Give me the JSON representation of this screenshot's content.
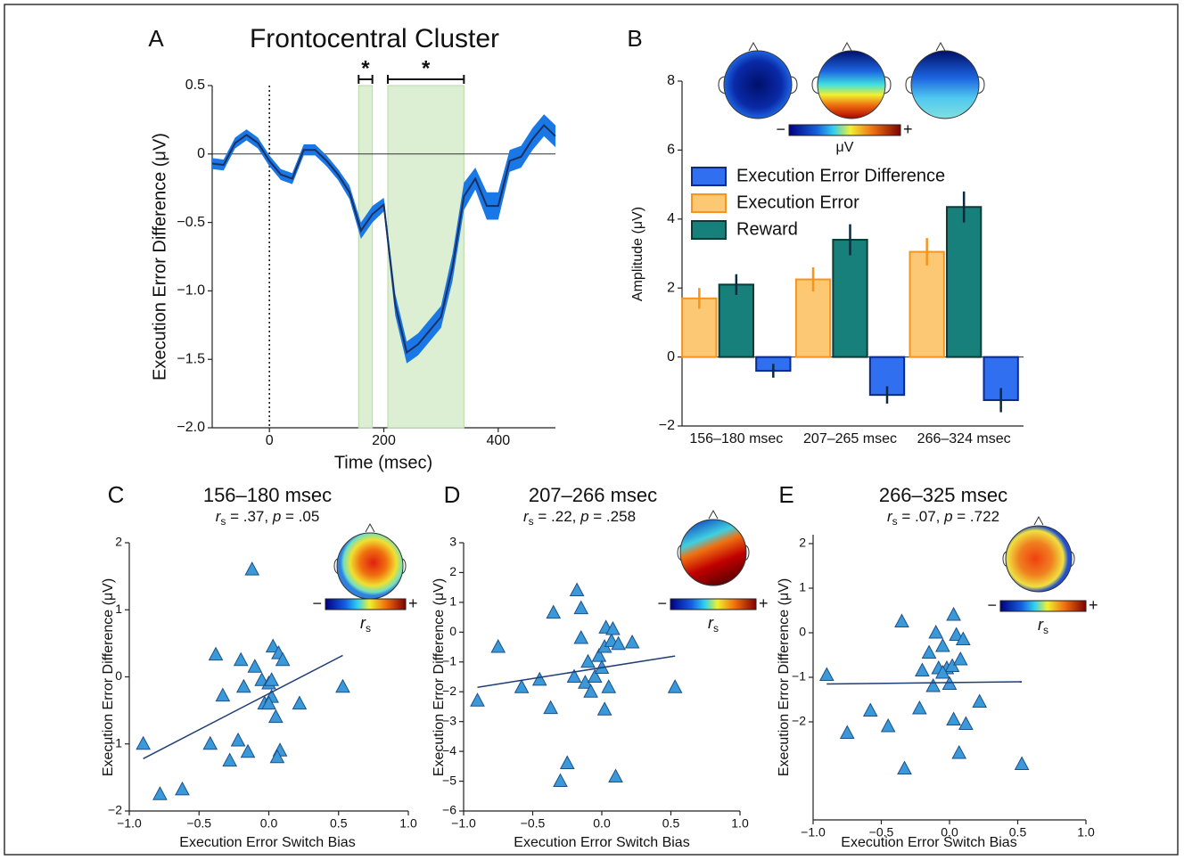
{
  "chart_data": [
    {
      "type": "line",
      "panel_label": "A",
      "title": "Frontocentral Cluster",
      "x_label": "Time (msec)",
      "y_label": "Execution Error Difference (μV)",
      "x": [
        -100,
        -80,
        -60,
        -40,
        -20,
        0,
        20,
        40,
        60,
        80,
        100,
        120,
        140,
        160,
        180,
        200,
        220,
        240,
        260,
        280,
        300,
        320,
        340,
        360,
        380,
        400,
        420,
        440,
        460,
        480,
        500
      ],
      "series": [
        {
          "color": "#1a78e6",
          "values": [
            -0.07,
            -0.08,
            0.08,
            0.14,
            0.08,
            -0.05,
            -0.15,
            -0.18,
            0.03,
            0.03,
            -0.05,
            -0.15,
            -0.28,
            -0.56,
            -0.44,
            -0.37,
            -1.1,
            -1.45,
            -1.39,
            -1.29,
            -1.19,
            -0.83,
            -0.31,
            -0.18,
            -0.38,
            -0.38,
            -0.05,
            -0.02,
            0.11,
            0.21,
            0.13
          ],
          "errors": [
            0.04,
            0.04,
            0.04,
            0.04,
            0.04,
            0.04,
            0.04,
            0.04,
            0.04,
            0.04,
            0.04,
            0.04,
            0.05,
            0.06,
            0.06,
            0.05,
            0.08,
            0.08,
            0.08,
            0.08,
            0.08,
            0.1,
            0.1,
            0.08,
            0.1,
            0.1,
            0.08,
            0.08,
            0.08,
            0.08,
            0.08
          ]
        }
      ],
      "significance": [
        {
          "range": [
            156,
            180
          ],
          "label": "*"
        },
        {
          "range": [
            207,
            340
          ],
          "label": "*"
        }
      ],
      "xlim": [
        -100,
        500
      ],
      "xticks": [
        0,
        200,
        400
      ],
      "ylim": [
        -2,
        0.5
      ],
      "yticks": [
        {
          "value": -2,
          "label": "−2.0"
        },
        {
          "value": -1.5,
          "label": "−1.5"
        },
        {
          "value": -1,
          "label": "−1.0"
        },
        {
          "value": -0.5,
          "label": "−0.5"
        },
        0,
        0.5
      ]
    },
    {
      "type": "bar",
      "panel_label": "B",
      "y_label": "Amplitude (μV)",
      "categories": [
        "156–180 msec",
        "207–265 msec",
        "266–324 msec"
      ],
      "series": [
        {
          "name": "Execution Error Difference",
          "color": "#2f6ff0",
          "edge": "#0a2a8c",
          "values": [
            -0.4,
            -1.1,
            -1.25
          ],
          "errors": [
            0.2,
            0.25,
            0.35
          ]
        },
        {
          "name": "Execution Error",
          "color": "#fdc873",
          "edge": "#f7941d",
          "values": [
            1.7,
            2.25,
            3.05
          ],
          "errors": [
            0.3,
            0.35,
            0.4
          ]
        },
        {
          "name": "Reward",
          "color": "#17807a",
          "edge": "#0b3b38",
          "values": [
            2.1,
            3.4,
            4.35
          ],
          "errors": [
            0.3,
            0.45,
            0.45
          ]
        }
      ],
      "bar_order": [
        1,
        2,
        0
      ],
      "colorbar": {
        "minus": "−",
        "plus": "+",
        "label": "μV"
      },
      "ylim": [
        -2,
        8
      ],
      "yticks": [
        {
          "value": -2,
          "label": "−2"
        },
        0,
        2,
        4,
        6,
        8
      ]
    },
    {
      "type": "scatter",
      "panel_label": "C",
      "title": "156–180 msec",
      "stat_parts": [
        "r",
        "s",
        " = .37, ",
        "p",
        " = .05"
      ],
      "x_label": "Execution Error Switch Bias",
      "y_label": "Execution Error Difference (μV)",
      "color": "#3a9ad9",
      "x": [
        -0.9,
        -0.78,
        -0.62,
        -0.42,
        -0.38,
        -0.33,
        -0.28,
        -0.22,
        -0.2,
        -0.18,
        -0.15,
        -0.12,
        -0.1,
        -0.05,
        -0.03,
        0.0,
        0.02,
        0.03,
        0.05,
        0.07,
        0.08,
        0.1,
        0.22,
        0.02,
        0.53,
        0.06,
        0.0
      ],
      "values": [
        -1.0,
        -1.75,
        -1.68,
        -1.0,
        0.33,
        -0.28,
        -1.25,
        -0.95,
        0.25,
        -0.15,
        -1.12,
        1.6,
        0.15,
        -0.05,
        -0.4,
        -0.1,
        -0.3,
        0.45,
        -0.6,
        0.35,
        -1.1,
        0.25,
        -0.4,
        -0.05,
        -0.15,
        -1.2,
        -0.4
      ],
      "fit_x": [
        -0.9,
        0.53
      ],
      "fit_values": [
        -1.22,
        0.32
      ],
      "colorbar": {
        "minus": "−",
        "plus": "+",
        "label_parts": [
          "r",
          "s"
        ]
      },
      "xlim": [
        -1,
        1
      ],
      "xticks": [
        {
          "value": -1,
          "label": "−1.0"
        },
        {
          "value": -0.5,
          "label": "−0.5"
        },
        {
          "value": 0,
          "label": "0.0"
        },
        0.5,
        {
          "value": 1,
          "label": "1.0"
        }
      ],
      "ylim": [
        -2,
        2
      ],
      "yticks": [
        2,
        1,
        0,
        {
          "value": -1,
          "label": "−1"
        },
        {
          "value": -2,
          "label": "−2"
        }
      ]
    },
    {
      "type": "scatter",
      "panel_label": "D",
      "title": "207–266 msec",
      "stat_parts": [
        "r",
        "s",
        " = .22, ",
        "p",
        " = .258"
      ],
      "x_label": "Execution Error Switch Bias",
      "y_label": "Execution Error Difference (μV)",
      "color": "#3a9ad9",
      "x": [
        -0.9,
        -0.75,
        -0.58,
        -0.45,
        -0.35,
        -0.37,
        -0.3,
        -0.25,
        -0.2,
        -0.18,
        -0.15,
        -0.15,
        -0.12,
        -0.1,
        -0.08,
        -0.05,
        -0.02,
        0.0,
        0.02,
        0.03,
        0.02,
        0.05,
        0.07,
        0.08,
        0.1,
        0.12,
        0.22,
        0.53
      ],
      "values": [
        -2.3,
        -0.5,
        -1.85,
        -1.6,
        0.65,
        -2.55,
        -5.0,
        -4.4,
        -1.5,
        1.4,
        0.8,
        -0.2,
        -1.7,
        -1.0,
        -2.0,
        -1.5,
        -0.8,
        -1.2,
        -0.5,
        0.15,
        -2.6,
        -1.85,
        -0.3,
        0.1,
        -4.85,
        -0.4,
        -0.35,
        -1.85
      ],
      "fit_x": [
        -0.9,
        0.53
      ],
      "fit_values": [
        -1.85,
        -0.8
      ],
      "colorbar": {
        "minus": "−",
        "plus": "+",
        "label_parts": [
          "r",
          "s"
        ]
      },
      "xlim": [
        -1,
        1
      ],
      "xticks": [
        {
          "value": -1,
          "label": "−1.0"
        },
        {
          "value": -0.5,
          "label": "−0.5"
        },
        {
          "value": 0,
          "label": "0.0"
        },
        0.5,
        {
          "value": 1,
          "label": "1.0"
        }
      ],
      "ylim": [
        -6,
        3
      ],
      "yticks": [
        3,
        2,
        1,
        0,
        {
          "value": -1,
          "label": "−1"
        },
        {
          "value": -2,
          "label": "−2"
        },
        {
          "value": -3,
          "label": "−3"
        },
        {
          "value": -4,
          "label": "−4"
        },
        {
          "value": -5,
          "label": "−5"
        },
        {
          "value": -6,
          "label": "−6"
        }
      ]
    },
    {
      "type": "scatter",
      "panel_label": "E",
      "title": "266–325 msec",
      "stat_parts": [
        "r",
        "s",
        " = .07, ",
        "p",
        " = .722"
      ],
      "x_label": "Execution Error Switch Bias",
      "y_label": "Execution Error Difference (μV)",
      "color": "#3a9ad9",
      "x": [
        -0.9,
        -0.75,
        -0.58,
        -0.45,
        -0.35,
        -0.33,
        -0.22,
        -0.2,
        -0.15,
        -0.12,
        -0.1,
        -0.08,
        -0.05,
        -0.02,
        0.0,
        0.02,
        0.03,
        0.03,
        0.05,
        0.07,
        0.08,
        0.1,
        0.12,
        0.22,
        0.53,
        -0.05
      ],
      "values": [
        -0.95,
        -2.25,
        -1.75,
        -2.1,
        0.25,
        -3.05,
        -1.7,
        -0.85,
        -0.45,
        -1.2,
        0.0,
        -0.8,
        -0.3,
        -0.8,
        -1.15,
        -0.75,
        0.4,
        -1.95,
        -0.05,
        -2.7,
        -0.6,
        -0.15,
        -2.05,
        -1.55,
        -2.95,
        -0.9
      ],
      "fit_x": [
        -0.9,
        0.53
      ],
      "fit_values": [
        -1.15,
        -1.1
      ],
      "colorbar": {
        "minus": "−",
        "plus": "+",
        "label_parts": [
          "r",
          "s"
        ]
      },
      "xlim": [
        -1,
        1
      ],
      "xticks": [
        {
          "value": -1,
          "label": "−1.0"
        },
        {
          "value": -0.5,
          "label": "−0.5"
        },
        {
          "value": 0,
          "label": "0.0"
        },
        0.5,
        {
          "value": 1,
          "label": "1.0"
        }
      ],
      "ylim": [
        -4.2,
        2.2
      ],
      "yticks": [
        2,
        1,
        0,
        {
          "value": -1,
          "label": "−1"
        },
        {
          "value": -2,
          "label": "−2"
        }
      ]
    }
  ]
}
